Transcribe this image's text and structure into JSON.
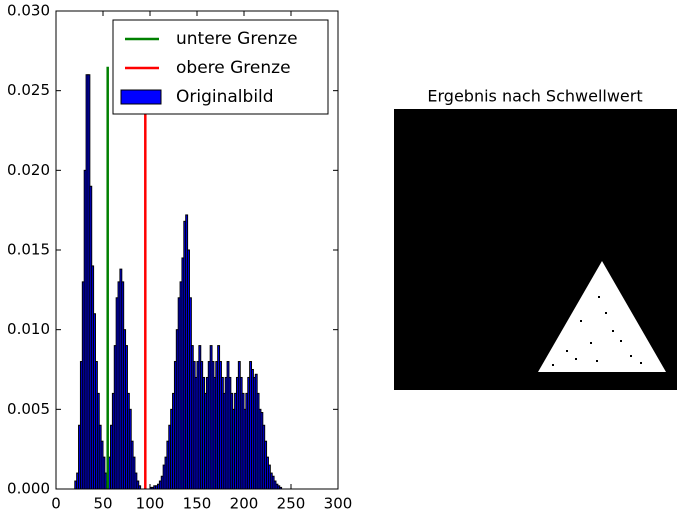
{
  "chart_data": [
    {
      "type": "histogram",
      "bins": [
        20,
        22,
        24,
        26,
        28,
        30,
        32,
        34,
        36,
        38,
        40,
        42,
        44,
        46,
        48,
        50,
        52,
        54,
        56,
        58,
        60,
        62,
        64,
        66,
        68,
        70,
        72,
        74,
        76,
        78,
        80,
        82,
        84,
        86,
        88,
        90,
        92,
        94,
        96,
        98,
        100,
        102,
        104,
        106,
        108,
        110,
        112,
        114,
        116,
        118,
        120,
        122,
        124,
        126,
        128,
        130,
        132,
        134,
        136,
        138,
        140,
        142,
        144,
        146,
        148,
        150,
        152,
        154,
        156,
        158,
        160,
        162,
        164,
        166,
        168,
        170,
        172,
        174,
        176,
        178,
        180,
        182,
        184,
        186,
        188,
        190,
        192,
        194,
        196,
        198,
        200,
        202,
        204,
        206,
        208,
        210,
        212,
        214,
        216,
        218,
        220,
        222,
        224,
        226,
        228,
        230,
        232,
        234,
        236,
        238,
        240
      ],
      "counts": [
        0.0005,
        0.001,
        0.004,
        0.008,
        0.013,
        0.02,
        0.026,
        0.026,
        0.019,
        0.014,
        0.011,
        0.008,
        0.006,
        0.004,
        0.003,
        0.002,
        0.001,
        0.0005,
        0.002,
        0.004,
        0.006,
        0.009,
        0.012,
        0.013,
        0.0138,
        0.013,
        0.01,
        0.009,
        0.006,
        0.005,
        0.003,
        0.002,
        0.001,
        0.0005,
        0.0002,
        0,
        0,
        0,
        0,
        0,
        0.0001,
        0.0001,
        0.0002,
        0.0002,
        0.0003,
        0.0005,
        0.0008,
        0.0015,
        0.002,
        0.003,
        0.004,
        0.005,
        0.006,
        0.008,
        0.01,
        0.012,
        0.013,
        0.0145,
        0.0168,
        0.0172,
        0.015,
        0.012,
        0.009,
        0.008,
        0.007,
        0.008,
        0.009,
        0.008,
        0.007,
        0.006,
        0.007,
        0.008,
        0.009,
        0.008,
        0.007,
        0.008,
        0.009,
        0.008,
        0.007,
        0.006,
        0.007,
        0.008,
        0.007,
        0.006,
        0.005,
        0.006,
        0.007,
        0.008,
        0.007,
        0.006,
        0.005,
        0.006,
        0.007,
        0.008,
        0.0075,
        0.007,
        0.0072,
        0.006,
        0.005,
        0.0048,
        0.004,
        0.003,
        0.002,
        0.0015,
        0.001,
        0.0008,
        0.0005,
        0.0003,
        0.0002,
        0.0001
      ],
      "name": "Originalbild",
      "color": "#0000ff",
      "edgecolor": "#000000",
      "series": [
        {
          "name": "untere Grenze",
          "color": "#008000",
          "x": [
            55,
            55
          ],
          "values": [
            0,
            0.0265
          ]
        },
        {
          "name": "obere Grenze",
          "color": "#ff0000",
          "x": [
            95,
            95
          ],
          "values": [
            0,
            0.0265
          ]
        }
      ],
      "xlim": [
        0,
        300
      ],
      "xticks": [
        0,
        50,
        100,
        150,
        200,
        250,
        300
      ],
      "ylim": [
        0,
        0.03
      ],
      "yticks": [
        {
          "value": 0,
          "label": "0.000"
        },
        {
          "value": 0.005,
          "label": "0.005"
        },
        {
          "value": 0.01,
          "label": "0.010"
        },
        {
          "value": 0.015,
          "label": "0.015"
        },
        {
          "value": 0.02,
          "label": "0.020"
        },
        {
          "value": 0.025,
          "label": "0.025"
        },
        {
          "value": 0.03,
          "label": "0.030"
        }
      ],
      "legend": "upper right"
    },
    {
      "type": "image",
      "title": "Ergebnis nach Schwellwert"
    }
  ]
}
